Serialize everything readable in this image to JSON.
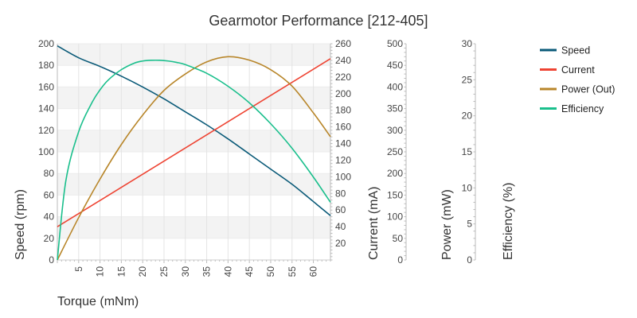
{
  "chart_data": {
    "type": "line",
    "title": "Gearmotor Performance [212-405]",
    "xlabel": "Torque (mNm)",
    "xlim": [
      0,
      64
    ],
    "x_ticks": [
      5,
      10,
      15,
      20,
      25,
      30,
      35,
      40,
      45,
      50,
      55,
      60
    ],
    "grid": true,
    "legend_position": "top-right",
    "axes": [
      {
        "id": "speed",
        "label": "Speed (rpm)",
        "side": "left",
        "range": [
          0,
          200
        ],
        "ticks": [
          0,
          20,
          40,
          60,
          80,
          100,
          120,
          140,
          160,
          180,
          200
        ]
      },
      {
        "id": "current",
        "label": "Current (mA)",
        "side": "right",
        "range": [
          0,
          260
        ],
        "ticks": [
          20,
          40,
          60,
          80,
          100,
          120,
          140,
          160,
          180,
          200,
          220,
          240,
          260
        ]
      },
      {
        "id": "power",
        "label": "Power (mW)",
        "side": "right",
        "range": [
          0,
          500
        ],
        "ticks": [
          0,
          50,
          100,
          150,
          200,
          250,
          300,
          350,
          400,
          450,
          500
        ]
      },
      {
        "id": "efficiency",
        "label": "Efficiency (%)",
        "side": "right",
        "range": [
          0,
          30
        ],
        "ticks": [
          0,
          5,
          10,
          15,
          20,
          25,
          30
        ]
      }
    ],
    "series": [
      {
        "name": "Speed",
        "axis": "speed",
        "color": "#0a5a78",
        "x": [
          0,
          5,
          10,
          15,
          20,
          25,
          30,
          35,
          40,
          45,
          50,
          55,
          60,
          64
        ],
        "y": [
          198,
          187,
          179,
          170,
          160,
          149,
          137,
          125,
          112,
          98,
          84,
          70,
          54,
          41
        ]
      },
      {
        "name": "Current",
        "axis": "current",
        "color": "#ee4433",
        "x": [
          0,
          64
        ],
        "y": [
          40,
          242
        ]
      },
      {
        "name": "Power (Out)",
        "axis": "power",
        "color": "#b8862a",
        "x": [
          0,
          5,
          10,
          15,
          20,
          25,
          30,
          35,
          40,
          45,
          50,
          55,
          60,
          64
        ],
        "y": [
          0,
          98,
          187,
          267,
          335,
          392,
          430,
          458,
          470,
          462,
          440,
          402,
          340,
          285
        ]
      },
      {
        "name": "Efficiency",
        "axis": "efficiency",
        "color": "#1abf8c",
        "x": [
          0,
          2,
          5,
          8,
          10,
          12,
          15,
          18,
          20,
          22,
          24,
          26,
          28,
          30,
          35,
          40,
          45,
          50,
          55,
          60,
          64
        ],
        "y": [
          0,
          11,
          17.8,
          21.7,
          23.6,
          25,
          26.4,
          27.3,
          27.6,
          27.7,
          27.7,
          27.6,
          27.4,
          27.1,
          25.9,
          24.1,
          21.8,
          18.9,
          15.5,
          11.5,
          8
        ]
      }
    ]
  }
}
